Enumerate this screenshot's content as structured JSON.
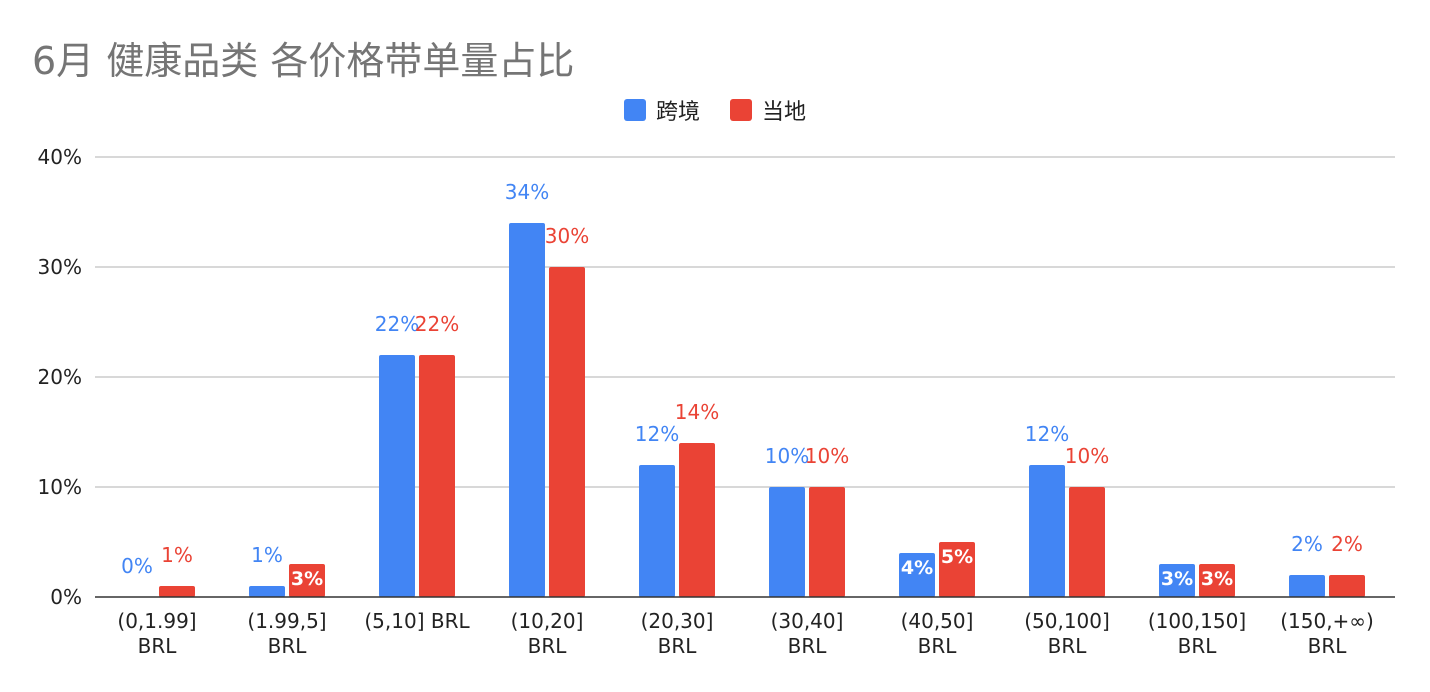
{
  "chart_data": {
    "type": "bar",
    "title": "6月 健康品类 各价格带单量占比",
    "legend_position": "top-center",
    "grid": true,
    "ylim": [
      0,
      40
    ],
    "yticks": [
      "0%",
      "10%",
      "20%",
      "30%",
      "40%"
    ],
    "ytick_values": [
      0,
      10,
      20,
      30,
      40
    ],
    "categories": [
      [
        "(0,1.99]",
        "BRL"
      ],
      [
        "(1.99,5]",
        "BRL"
      ],
      [
        "(5,10] BRL"
      ],
      [
        "(10,20]",
        "BRL"
      ],
      [
        "(20,30]",
        "BRL"
      ],
      [
        "(30,40]",
        "BRL"
      ],
      [
        "(40,50]",
        "BRL"
      ],
      [
        "(50,100]",
        "BRL"
      ],
      [
        "(100,150]",
        "BRL"
      ],
      [
        "(150,+∞)",
        "BRL"
      ]
    ],
    "series": [
      {
        "name": "跨境",
        "color": "#4285F4",
        "values": [
          0,
          1,
          22,
          34,
          12,
          10,
          4,
          12,
          3,
          2
        ],
        "labels": [
          "0%",
          "1%",
          "22%",
          "34%",
          "12%",
          "10%",
          "4%",
          "12%",
          "3%",
          "2%"
        ],
        "label_inside": [
          false,
          false,
          false,
          false,
          false,
          false,
          true,
          false,
          true,
          false
        ]
      },
      {
        "name": "当地",
        "color": "#EA4335",
        "values": [
          1,
          3,
          22,
          30,
          14,
          10,
          5,
          10,
          3,
          2
        ],
        "labels": [
          "1%",
          "3%",
          "22%",
          "30%",
          "14%",
          "10%",
          "5%",
          "10%",
          "3%",
          "2%"
        ],
        "label_inside": [
          false,
          true,
          false,
          false,
          false,
          false,
          true,
          false,
          true,
          false
        ]
      }
    ]
  }
}
